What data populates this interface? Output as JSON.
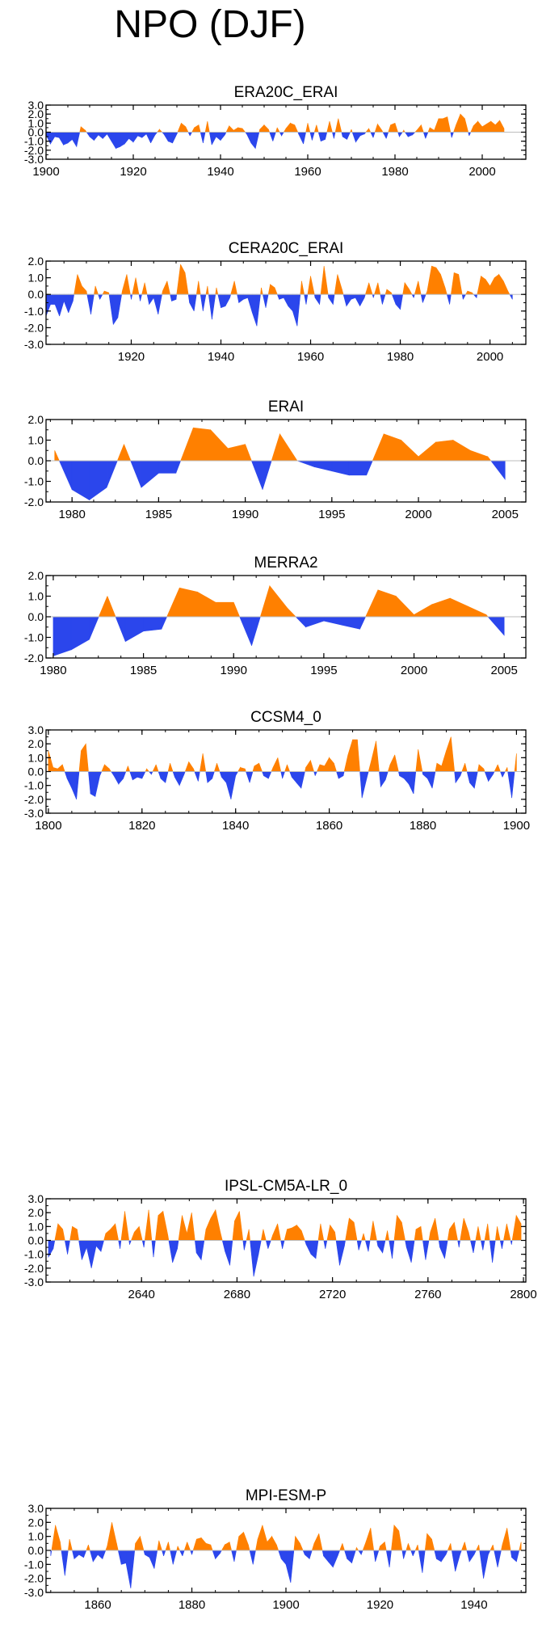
{
  "title": "NPO (DJF)",
  "colors": {
    "positive": "#ff8000",
    "negative": "#2b46ec",
    "axis": "#000000",
    "zero": "#bdbdbd"
  },
  "chart_data": [
    {
      "type": "area",
      "title": "ERA20C_ERAI",
      "xlim": [
        1900,
        2010
      ],
      "ylim": [
        -3.0,
        3.0
      ],
      "yticks": [
        "3.0",
        "2.0",
        "1.0",
        "0.0",
        "-1.0",
        "-2.0",
        "-3.0"
      ],
      "xticks": [
        "1900",
        "1920",
        "1940",
        "1960",
        "1980",
        "2000"
      ],
      "x": [
        1900,
        1901,
        1902,
        1903,
        1904,
        1905,
        1906,
        1907,
        1908,
        1909,
        1910,
        1911,
        1912,
        1913,
        1914,
        1915,
        1916,
        1917,
        1918,
        1919,
        1920,
        1921,
        1922,
        1923,
        1924,
        1925,
        1926,
        1927,
        1928,
        1929,
        1930,
        1931,
        1932,
        1933,
        1934,
        1935,
        1936,
        1937,
        1938,
        1939,
        1940,
        1941,
        1942,
        1943,
        1944,
        1945,
        1946,
        1947,
        1948,
        1949,
        1950,
        1951,
        1952,
        1953,
        1954,
        1955,
        1956,
        1957,
        1958,
        1959,
        1960,
        1961,
        1962,
        1963,
        1964,
        1965,
        1966,
        1967,
        1968,
        1969,
        1970,
        1971,
        1972,
        1973,
        1974,
        1975,
        1976,
        1977,
        1978,
        1979,
        1980,
        1981,
        1982,
        1983,
        1984,
        1985,
        1986,
        1987,
        1988,
        1989,
        1990,
        1991,
        1992,
        1993,
        1994,
        1995,
        1996,
        1997,
        1998,
        1999,
        2000,
        2001,
        2002,
        2003,
        2004,
        2005
      ],
      "values": [
        -0.3,
        -1.3,
        -0.5,
        -0.6,
        -1.4,
        -1.2,
        -0.8,
        -1.6,
        0.6,
        0.2,
        -0.5,
        -0.9,
        -0.3,
        -0.7,
        -0.2,
        -1.0,
        -1.8,
        -1.6,
        -1.3,
        -0.7,
        -1.1,
        -0.4,
        -0.6,
        -0.2,
        -1.2,
        -0.3,
        0.3,
        -0.2,
        -1.0,
        -1.2,
        -0.2,
        1.0,
        0.6,
        -0.4,
        0.5,
        0.8,
        -1.2,
        1.2,
        -1.4,
        -0.5,
        -0.9,
        -0.3,
        0.7,
        0.2,
        0.5,
        0.4,
        -0.2,
        -1.2,
        -1.8,
        0.3,
        0.8,
        0.3,
        -1.0,
        0.5,
        -0.4,
        0.4,
        1.0,
        0.8,
        -0.3,
        -1.3,
        1.0,
        -0.9,
        0.8,
        -1.0,
        -0.8,
        1.2,
        -0.7,
        1.5,
        -0.5,
        -0.8,
        0.3,
        -1.1,
        -0.4,
        -0.2,
        0.4,
        -0.6,
        0.9,
        0.2,
        -0.7,
        0.8,
        1.0,
        -0.5,
        0.2,
        -0.5,
        -0.3,
        0.2,
        0.8,
        -0.7,
        0.5,
        0.2,
        1.5,
        1.5,
        1.7,
        -0.6,
        0.8,
        2.0,
        1.5,
        -0.4,
        0.7,
        1.2,
        0.6,
        0.9,
        1.2,
        0.8,
        1.3,
        0.4
      ]
    },
    {
      "type": "area",
      "title": "CERA20C_ERAI",
      "xlim": [
        1901,
        2008
      ],
      "ylim": [
        -3.0,
        2.0
      ],
      "yticks": [
        "2.0",
        "1.0",
        "0.0",
        "-1.0",
        "-2.0",
        "-3.0"
      ],
      "xticks": [
        "1920",
        "1940",
        "1960",
        "1980",
        "2000"
      ],
      "x": [
        1901,
        1902,
        1903,
        1904,
        1905,
        1906,
        1907,
        1908,
        1909,
        1910,
        1911,
        1912,
        1913,
        1914,
        1915,
        1916,
        1917,
        1918,
        1919,
        1920,
        1921,
        1922,
        1923,
        1924,
        1925,
        1926,
        1927,
        1928,
        1929,
        1930,
        1931,
        1932,
        1933,
        1934,
        1935,
        1936,
        1937,
        1938,
        1939,
        1940,
        1941,
        1942,
        1943,
        1944,
        1945,
        1946,
        1947,
        1948,
        1949,
        1950,
        1951,
        1952,
        1953,
        1954,
        1955,
        1956,
        1957,
        1958,
        1959,
        1960,
        1961,
        1962,
        1963,
        1964,
        1965,
        1966,
        1967,
        1968,
        1969,
        1970,
        1971,
        1972,
        1973,
        1974,
        1975,
        1976,
        1977,
        1978,
        1979,
        1980,
        1981,
        1982,
        1983,
        1984,
        1985,
        1986,
        1987,
        1988,
        1989,
        1990,
        1991,
        1992,
        1993,
        1994,
        1995,
        1996,
        1997,
        1998,
        1999,
        2000,
        2001,
        2002,
        2003,
        2004,
        2005
      ],
      "values": [
        -1.3,
        -0.6,
        -0.6,
        -1.3,
        -0.4,
        -1.1,
        -0.4,
        1.2,
        0.5,
        0.2,
        -1.2,
        0.5,
        -0.3,
        0.2,
        0.1,
        -1.8,
        -1.4,
        0.2,
        1.2,
        -0.3,
        1.0,
        -0.4,
        0.7,
        -0.6,
        -0.2,
        -1.2,
        0.2,
        0.8,
        -0.4,
        -0.3,
        1.8,
        1.3,
        -0.5,
        -1.0,
        0.8,
        -1.0,
        0.5,
        -1.5,
        0.4,
        -0.8,
        -0.7,
        -0.2,
        0.8,
        -0.5,
        -0.3,
        -0.2,
        -1.1,
        -1.9,
        0.4,
        -0.8,
        0.6,
        0.4,
        -0.3,
        -0.2,
        -0.7,
        -1.0,
        -1.9,
        0.8,
        -0.6,
        1.1,
        -0.2,
        -0.6,
        1.7,
        -0.2,
        -0.6,
        1.2,
        0.3,
        -0.7,
        -0.3,
        -0.2,
        -0.7,
        -0.2,
        0.7,
        -0.2,
        0.7,
        -0.6,
        0.3,
        0.1,
        -0.6,
        -0.9,
        0.7,
        0.3,
        -0.2,
        0.8,
        -0.5,
        0.2,
        1.7,
        1.6,
        1.2,
        0.4,
        -0.6,
        1.3,
        1.2,
        -0.3,
        0.2,
        0.1,
        -0.2,
        1.1,
        0.9,
        0.5,
        1.0,
        1.2,
        0.8,
        0.2,
        -0.3
      ]
    },
    {
      "type": "area",
      "title": "ERAI",
      "xlim": [
        1978.5,
        2006.2
      ],
      "ylim": [
        -2.0,
        2.0
      ],
      "yticks": [
        "2.0",
        "1.0",
        "0.0",
        "-1.0",
        "-2.0"
      ],
      "xticks": [
        "1980",
        "1985",
        "1990",
        "1995",
        "2000",
        "2005"
      ],
      "x": [
        1979,
        1980,
        1981,
        1982,
        1983,
        1984,
        1985,
        1986,
        1987,
        1988,
        1989,
        1990,
        1991,
        1992,
        1993,
        1994,
        1995,
        1996,
        1997,
        1998,
        1999,
        2000,
        2001,
        2002,
        2003,
        2004,
        2005
      ],
      "values": [
        0.5,
        -1.4,
        -1.9,
        -1.3,
        0.8,
        -1.3,
        -0.6,
        -0.6,
        1.6,
        1.5,
        0.6,
        0.8,
        -1.4,
        1.3,
        0.0,
        -0.3,
        -0.5,
        -0.7,
        -0.7,
        1.3,
        1.0,
        0.2,
        0.9,
        1.0,
        0.5,
        0.2,
        -0.9
      ]
    },
    {
      "type": "area",
      "title": "MERRA2",
      "xlim": [
        1979.6,
        2006.2
      ],
      "ylim": [
        -2.0,
        2.0
      ],
      "yticks": [
        "2.0",
        "1.0",
        "0.0",
        "-1.0",
        "-2.0"
      ],
      "xticks": [
        "1980",
        "1985",
        "1990",
        "1995",
        "2000",
        "2005"
      ],
      "x": [
        1980,
        1981,
        1982,
        1983,
        1984,
        1985,
        1986,
        1987,
        1988,
        1989,
        1990,
        1991,
        1992,
        1993,
        1994,
        1995,
        1996,
        1997,
        1998,
        1999,
        2000,
        2001,
        2002,
        2003,
        2004,
        2005
      ],
      "values": [
        -1.9,
        -1.6,
        -1.1,
        1.0,
        -1.2,
        -0.7,
        -0.6,
        1.4,
        1.2,
        0.7,
        0.7,
        -1.4,
        1.5,
        0.4,
        -0.5,
        -0.2,
        -0.4,
        -0.6,
        1.3,
        1.0,
        0.1,
        0.6,
        0.9,
        0.5,
        0.1,
        -0.9
      ]
    },
    {
      "type": "area",
      "title": "CCSM4_0",
      "xlim": [
        1799.5,
        1902
      ],
      "ylim": [
        -3.0,
        3.0
      ],
      "yticks": [
        "3.0",
        "2.0",
        "1.0",
        "0.0",
        "-1.0",
        "-2.0",
        "-3.0"
      ],
      "xticks": [
        "1800",
        "1820",
        "1840",
        "1860",
        "1880",
        "1900"
      ],
      "x": [
        1800,
        1801,
        1802,
        1803,
        1804,
        1805,
        1806,
        1807,
        1808,
        1809,
        1810,
        1811,
        1812,
        1813,
        1814,
        1815,
        1816,
        1817,
        1818,
        1819,
        1820,
        1821,
        1822,
        1823,
        1824,
        1825,
        1826,
        1827,
        1828,
        1829,
        1830,
        1831,
        1832,
        1833,
        1834,
        1835,
        1836,
        1837,
        1838,
        1839,
        1840,
        1841,
        1842,
        1843,
        1844,
        1845,
        1846,
        1847,
        1848,
        1849,
        1850,
        1851,
        1852,
        1853,
        1854,
        1855,
        1856,
        1857,
        1858,
        1859,
        1860,
        1861,
        1862,
        1863,
        1864,
        1865,
        1866,
        1867,
        1868,
        1869,
        1870,
        1871,
        1872,
        1873,
        1874,
        1875,
        1876,
        1877,
        1878,
        1879,
        1880,
        1881,
        1882,
        1883,
        1884,
        1885,
        1886,
        1887,
        1888,
        1889,
        1890,
        1891,
        1892,
        1893,
        1894,
        1895,
        1896,
        1897,
        1898,
        1899,
        1900
      ],
      "values": [
        1.5,
        0.3,
        0.2,
        0.5,
        -0.5,
        -1.2,
        -2.0,
        1.5,
        2.0,
        -1.6,
        -1.8,
        -0.3,
        0.5,
        0.2,
        -0.3,
        -0.9,
        -0.5,
        0.4,
        -0.6,
        -0.4,
        -0.5,
        0.2,
        -0.2,
        0.5,
        -0.5,
        -0.8,
        0.6,
        -0.4,
        -1.0,
        -0.2,
        0.7,
        0.2,
        -0.7,
        1.3,
        -0.8,
        -0.5,
        0.6,
        -0.4,
        -0.8,
        -2.0,
        -0.3,
        0.3,
        0.2,
        -0.8,
        0.4,
        0.6,
        -0.3,
        -0.5,
        0.3,
        1.0,
        -0.5,
        0.5,
        -0.4,
        -0.8,
        -1.2,
        0.3,
        0.8,
        -0.3,
        0.5,
        0.4,
        1.0,
        0.6,
        -0.5,
        -0.3,
        1.2,
        2.3,
        2.3,
        -1.9,
        -0.5,
        0.8,
        2.2,
        -1.1,
        -0.6,
        0.5,
        1.2,
        -0.3,
        -0.5,
        -0.9,
        -1.6,
        1.6,
        -0.2,
        -0.5,
        -1.2,
        0.6,
        0.4,
        1.5,
        2.5,
        -0.8,
        -0.3,
        0.6,
        -0.8,
        -1.2,
        0.5,
        0.2,
        -0.7,
        -0.2,
        0.5,
        -0.4,
        0.3,
        -1.9,
        1.3
      ]
    },
    {
      "type": "area",
      "title": "IPSL-CM5A-LR_0",
      "xlim": [
        2600,
        2801
      ],
      "ylim": [
        -3.0,
        3.0
      ],
      "yticks": [
        "3.0",
        "2.0",
        "1.0",
        "0.0",
        "-1.0",
        "-2.0",
        "-3.0"
      ],
      "xticks": [
        "2640",
        "2680",
        "2720",
        "2760",
        "2800"
      ],
      "x": [
        2601,
        2603,
        2605,
        2607,
        2609,
        2611,
        2613,
        2615,
        2617,
        2619,
        2621,
        2623,
        2625,
        2627,
        2629,
        2631,
        2633,
        2635,
        2637,
        2639,
        2641,
        2643,
        2645,
        2647,
        2649,
        2651,
        2653,
        2655,
        2657,
        2659,
        2661,
        2663,
        2665,
        2667,
        2669,
        2671,
        2673,
        2675,
        2677,
        2679,
        2681,
        2683,
        2685,
        2687,
        2689,
        2691,
        2693,
        2695,
        2697,
        2699,
        2701,
        2703,
        2705,
        2707,
        2709,
        2711,
        2713,
        2715,
        2717,
        2719,
        2721,
        2723,
        2725,
        2727,
        2729,
        2731,
        2733,
        2735,
        2737,
        2739,
        2741,
        2743,
        2745,
        2747,
        2749,
        2751,
        2753,
        2755,
        2757,
        2759,
        2761,
        2763,
        2765,
        2767,
        2769,
        2771,
        2773,
        2775,
        2777,
        2779,
        2781,
        2783,
        2785,
        2787,
        2789,
        2791,
        2793,
        2795,
        2797,
        2799
      ],
      "values": [
        -1.2,
        -0.6,
        1.2,
        0.8,
        -1.0,
        1.0,
        0.8,
        -1.4,
        -0.5,
        -2.0,
        -0.4,
        -0.8,
        0.5,
        0.8,
        1.2,
        -0.6,
        2.1,
        -0.3,
        0.6,
        1.0,
        -0.5,
        2.2,
        -1.2,
        1.8,
        2.1,
        0.4,
        -1.6,
        -0.6,
        1.8,
        0.5,
        2.0,
        -0.9,
        -1.4,
        0.8,
        1.6,
        2.2,
        0.6,
        -0.8,
        -1.8,
        1.4,
        2.1,
        -0.7,
        0.8,
        -2.6,
        -1.0,
        0.8,
        -0.6,
        0.4,
        1.2,
        -0.6,
        0.8,
        0.9,
        1.1,
        0.7,
        -0.3,
        -1.0,
        -1.3,
        1.2,
        -0.6,
        1.1,
        0.6,
        -1.8,
        -0.4,
        1.6,
        1.3,
        -0.7,
        0.5,
        -0.8,
        1.4,
        -0.4,
        -0.9,
        0.7,
        -1.3,
        1.8,
        1.3,
        -0.5,
        -1.6,
        0.8,
        1.0,
        -1.4,
        0.6,
        1.6,
        -0.5,
        -1.3,
        0.8,
        1.3,
        -0.5,
        1.6,
        0.6,
        -0.9,
        1.0,
        -0.7,
        1.2,
        -1.6,
        1.0,
        -0.6,
        1.2,
        -0.3,
        1.8,
        1.2
      ]
    },
    {
      "type": "area",
      "title": "MPI-ESM-P",
      "xlim": [
        1849,
        1951
      ],
      "ylim": [
        -3.0,
        3.0
      ],
      "yticks": [
        "3.0",
        "2.0",
        "1.0",
        "0.0",
        "-1.0",
        "-2.0",
        "-3.0"
      ],
      "xticks": [
        "1860",
        "1880",
        "1900",
        "1920",
        "1940"
      ],
      "x": [
        1850,
        1851,
        1852,
        1853,
        1854,
        1855,
        1856,
        1857,
        1858,
        1859,
        1860,
        1861,
        1862,
        1863,
        1864,
        1865,
        1866,
        1867,
        1868,
        1869,
        1870,
        1871,
        1872,
        1873,
        1874,
        1875,
        1876,
        1877,
        1878,
        1879,
        1880,
        1881,
        1882,
        1883,
        1884,
        1885,
        1886,
        1887,
        1888,
        1889,
        1890,
        1891,
        1892,
        1893,
        1894,
        1895,
        1896,
        1897,
        1898,
        1899,
        1900,
        1901,
        1902,
        1903,
        1904,
        1905,
        1906,
        1907,
        1908,
        1909,
        1910,
        1911,
        1912,
        1913,
        1914,
        1915,
        1916,
        1917,
        1918,
        1919,
        1920,
        1921,
        1922,
        1923,
        1924,
        1925,
        1926,
        1927,
        1928,
        1929,
        1930,
        1931,
        1932,
        1933,
        1934,
        1935,
        1936,
        1937,
        1938,
        1939,
        1940,
        1941,
        1942,
        1943,
        1944,
        1945,
        1946,
        1947,
        1948,
        1949,
        1950
      ],
      "values": [
        -0.4,
        1.8,
        0.6,
        -1.8,
        0.8,
        -0.6,
        -0.3,
        -0.5,
        0.4,
        -0.8,
        -0.3,
        -0.6,
        0.3,
        2.0,
        0.5,
        -1.0,
        -0.9,
        -2.7,
        0.5,
        1.0,
        -0.3,
        -0.5,
        -1.3,
        0.7,
        -0.4,
        0.6,
        -1.0,
        0.3,
        -0.4,
        0.6,
        -0.3,
        0.8,
        0.9,
        0.5,
        0.4,
        -0.6,
        -0.2,
        0.4,
        0.6,
        -0.8,
        1.0,
        1.3,
        0.4,
        -1.0,
        0.8,
        1.8,
        0.6,
        1.0,
        0.4,
        -0.6,
        -1.0,
        -2.3,
        1.0,
        0.5,
        -0.3,
        -0.6,
        0.5,
        1.2,
        -0.4,
        -0.8,
        -1.2,
        -0.4,
        0.5,
        -0.6,
        -0.9,
        0.2,
        -0.3,
        0.6,
        1.6,
        -0.8,
        0.3,
        0.6,
        -1.2,
        1.8,
        1.4,
        -0.6,
        0.5,
        -0.4,
        0.4,
        -1.6,
        1.2,
        0.8,
        -0.6,
        -0.8,
        -0.3,
        0.5,
        -1.5,
        -0.3,
        0.6,
        -0.8,
        -0.3,
        0.4,
        -2.0,
        -0.3,
        0.4,
        -1.2,
        0.4,
        1.6,
        -0.5,
        -0.8,
        0.6
      ]
    }
  ]
}
